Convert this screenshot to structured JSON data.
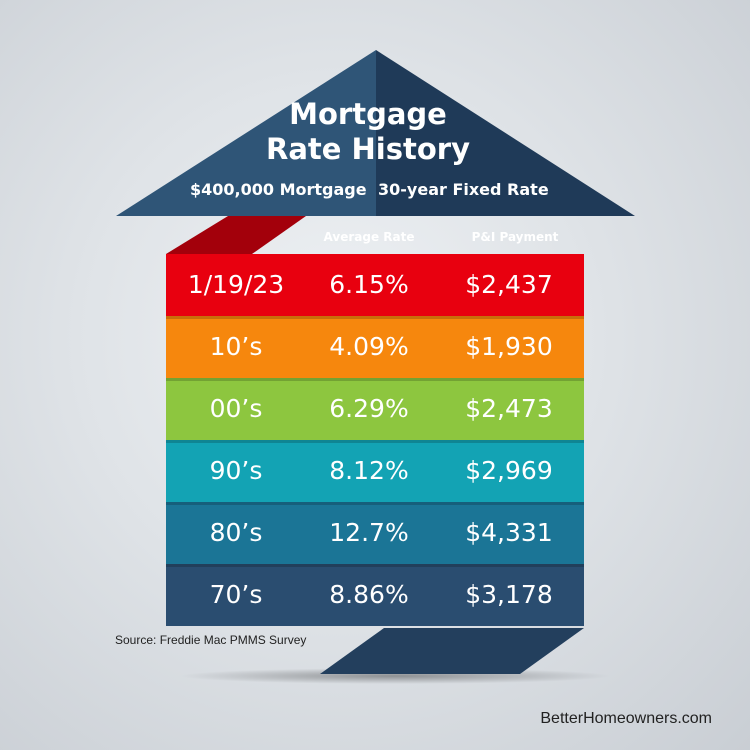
{
  "header": {
    "title_line1": "Mortgage",
    "title_line2": "Rate History",
    "subtitle_amount": "$400,000 Mortgage",
    "subtitle_term": "30-year Fixed Rate"
  },
  "columns": {
    "average_rate": "Average Rate",
    "pi_payment": "P&I Payment"
  },
  "rows": [
    {
      "period": "1/19/23",
      "rate": "6.15%",
      "payment": "$2,437",
      "color": "#e8000f"
    },
    {
      "period": "10’s",
      "rate": "4.09%",
      "payment": "$1,930",
      "color": "#f6870d"
    },
    {
      "period": "00’s",
      "rate": "6.29%",
      "payment": "$2,473",
      "color": "#8dc63f"
    },
    {
      "period": "90’s",
      "rate": "8.12%",
      "payment": "$2,969",
      "color": "#13a3b4"
    },
    {
      "period": "80’s",
      "rate": "12.7%",
      "payment": "$4,331",
      "color": "#1b7596"
    },
    {
      "period": "70’s",
      "rate": "8.86%",
      "payment": "$3,178",
      "color": "#2a4d70"
    }
  ],
  "source": "Source: Freddie Mac PMMS Survey",
  "brand": "BetterHomeowners.com",
  "colors": {
    "roof_left": "#2f5577",
    "roof_right": "#1f3a58",
    "text": "#ffffff"
  }
}
